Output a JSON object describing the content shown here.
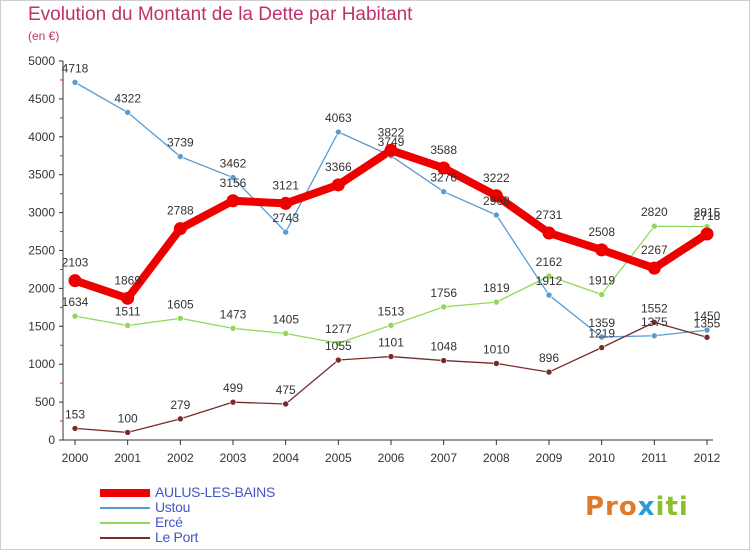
{
  "page": {
    "title": "Evolution du Montant de la Dette par Habitant",
    "subtitle": "(en €)",
    "logo": {
      "parts": [
        "Pro",
        "x",
        "iti"
      ],
      "colors": [
        "#e07a2a",
        "#2a9ad8",
        "#8abf2e"
      ]
    }
  },
  "chart_data": {
    "type": "line",
    "x": [
      "2000",
      "2001",
      "2002",
      "2003",
      "2004",
      "2005",
      "2006",
      "2007",
      "2008",
      "2009",
      "2010",
      "2011",
      "2012"
    ],
    "ylim": [
      0,
      5000
    ],
    "yticks": [
      "0",
      "500",
      "1000",
      "1500",
      "2000",
      "2500",
      "3000",
      "3500",
      "4000",
      "4500",
      "5000"
    ],
    "grid": false,
    "legend_position": "bottom-left",
    "series": [
      {
        "name": "AULUS-LES-BAINS",
        "color": "#ee0000",
        "emphasis": true,
        "values": [
          2103,
          1869,
          2788,
          3156,
          3121,
          3366,
          3822,
          3588,
          3222,
          2731,
          2508,
          2267,
          2718
        ],
        "labels": [
          "2103",
          "1869",
          "2788",
          "3156",
          "3121",
          "3366",
          "3822",
          "3588",
          "3222",
          "2731",
          "2508",
          "2267",
          "2718"
        ]
      },
      {
        "name": "Ustou",
        "color": "#5b9bd0",
        "emphasis": false,
        "values": [
          4718,
          4322,
          3739,
          3462,
          2743,
          4063,
          3749,
          3276,
          2968,
          1912,
          1359,
          1375,
          1450
        ],
        "labels": [
          "4718",
          "4322",
          "3739",
          "3462",
          "2743",
          "4063",
          "3749",
          "3276",
          "2968",
          "1912",
          "1359",
          "1375",
          "1450"
        ]
      },
      {
        "name": "Ercé",
        "color": "#90d85a",
        "emphasis": false,
        "values": [
          1634,
          1511,
          1605,
          1473,
          1405,
          1277,
          1513,
          1756,
          1819,
          2162,
          1919,
          2820,
          2815
        ],
        "labels": [
          "1634",
          "1511",
          "1605",
          "1473",
          "1405",
          "1277",
          "1513",
          "1756",
          "1819",
          "2162",
          "1919",
          "2820",
          "2815"
        ]
      },
      {
        "name": "Le Port",
        "color": "#7a2a2a",
        "emphasis": false,
        "values": [
          153,
          100,
          279,
          499,
          475,
          1055,
          1101,
          1048,
          1010,
          896,
          1219,
          1552,
          1355
        ],
        "labels": [
          "153",
          "100",
          "279",
          "499",
          "475",
          "1055",
          "1101",
          "1048",
          "1010",
          "896",
          "1219",
          "1552",
          "1355"
        ]
      }
    ]
  }
}
